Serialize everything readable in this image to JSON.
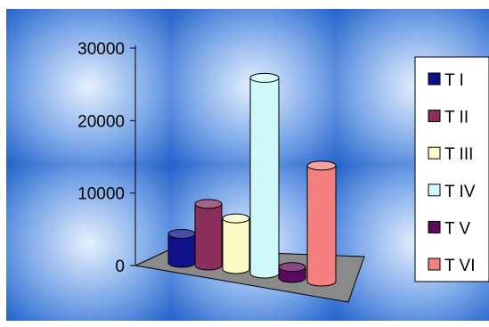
{
  "chart_data": {
    "type": "bar",
    "style": "3d-cylinder",
    "categories": [
      "T I",
      "T II",
      "T III",
      "T IV",
      "T V",
      "T VI"
    ],
    "values": [
      4000,
      8500,
      7000,
      27000,
      1500,
      16000
    ],
    "colors": [
      "#10108a",
      "#8a2e5c",
      "#fbfbc8",
      "#cff9f9",
      "#5c0a5c",
      "#f58080"
    ],
    "ylim": [
      0,
      30000
    ],
    "yticks": [
      "0",
      "10000",
      "20000",
      "30000"
    ],
    "legend": {
      "position": "right",
      "entries": [
        "T I",
        "T II",
        "T III",
        "T IV",
        "T V",
        "T VI"
      ]
    },
    "title": "",
    "xlabel": "",
    "ylabel": "",
    "grid": false,
    "background": {
      "tile_dark": "#1e5fc8",
      "tile_light": "#e6f0ff"
    },
    "floor_color": "#8a8a8a"
  }
}
